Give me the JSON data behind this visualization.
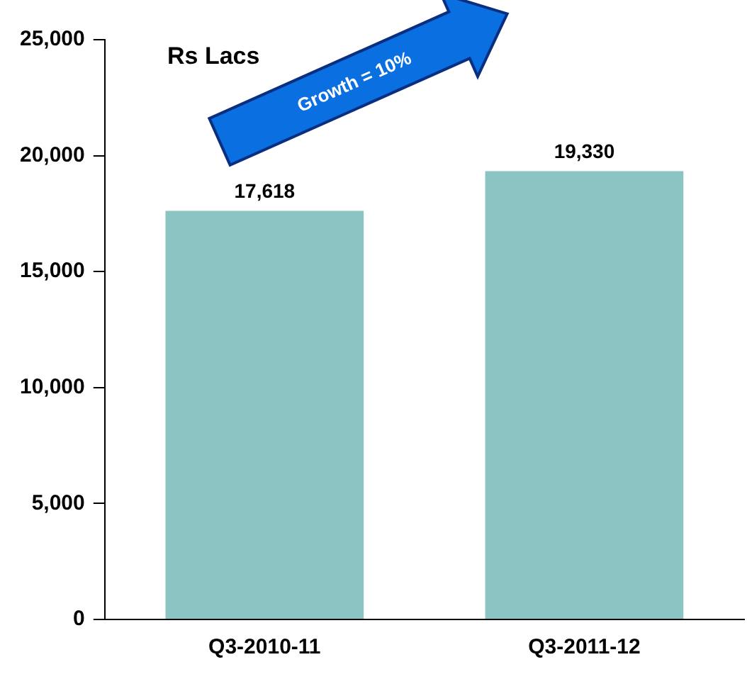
{
  "chart_data": {
    "type": "bar",
    "ylabel": "Rs Lacs",
    "categories": [
      "Q3-2010-11",
      "Q3-2011-12"
    ],
    "values": [
      17618,
      19330
    ],
    "color": "#8cc4c4",
    "ylim": [
      0,
      25000
    ],
    "yticks": [
      {
        "value": 0,
        "label": "0"
      },
      {
        "value": 5000,
        "label": "5,000"
      },
      {
        "value": 10000,
        "label": "10,000"
      },
      {
        "value": 15000,
        "label": "15,000"
      },
      {
        "value": 20000,
        "label": "20,000"
      },
      {
        "value": 25000,
        "label": "25,000"
      }
    ],
    "grid": false,
    "value_labels": [
      "17,618",
      "19,330"
    ],
    "annotations": [
      "Growth = 10%"
    ]
  }
}
